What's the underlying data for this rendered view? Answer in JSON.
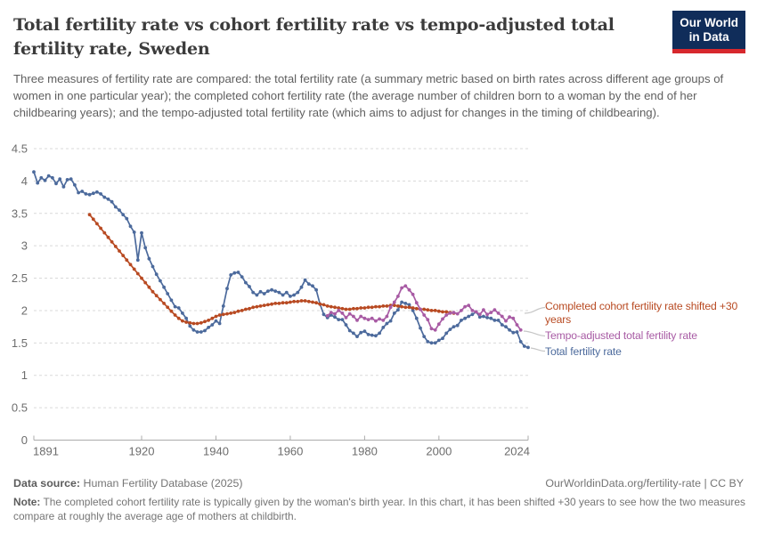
{
  "logo": {
    "line1": "Our World",
    "line2": "in Data"
  },
  "header": {
    "title_line1": "Total fertility rate vs cohort fertility rate vs tempo-adjusted total",
    "title_line2": "fertility rate, Sweden",
    "subtitle": "Three measures of fertility rate are compared: the total fertility rate (a summary metric based on birth rates across different age groups of women in one particular year); the completed cohort fertility rate (the average number of children born to a woman by the end of her childbearing years); and the tempo-adjusted total fertility rate (which aims to adjust for changes in the timing of childbearing)."
  },
  "chart_data": {
    "type": "line",
    "title": "Total fertility rate vs cohort fertility rate vs tempo-adjusted total fertility rate, Sweden",
    "xlabel": "",
    "ylabel": "",
    "xlim": [
      1891,
      2024
    ],
    "ylim": [
      0,
      4.5
    ],
    "x_ticks": [
      1891,
      1920,
      1940,
      1960,
      1980,
      2000,
      2024
    ],
    "y_ticks": [
      0,
      0.5,
      1,
      1.5,
      2,
      2.5,
      3,
      3.5,
      4,
      4.5
    ],
    "grid": "horizontal-dashed",
    "legend_position": "right-annotations",
    "series": [
      {
        "name": "Total fertility rate",
        "color": "#4c6a9c",
        "start_year": 1891,
        "values": [
          4.14,
          3.97,
          4.05,
          4.01,
          4.08,
          4.05,
          3.96,
          4.03,
          3.91,
          4.02,
          4.03,
          3.94,
          3.82,
          3.84,
          3.8,
          3.79,
          3.81,
          3.83,
          3.8,
          3.75,
          3.72,
          3.68,
          3.6,
          3.55,
          3.48,
          3.42,
          3.3,
          3.21,
          2.78,
          3.2,
          2.97,
          2.8,
          2.68,
          2.56,
          2.46,
          2.36,
          2.26,
          2.16,
          2.06,
          2.04,
          1.96,
          1.88,
          1.76,
          1.7,
          1.67,
          1.67,
          1.69,
          1.74,
          1.78,
          1.84,
          1.8,
          2.07,
          2.34,
          2.55,
          2.58,
          2.59,
          2.52,
          2.43,
          2.37,
          2.28,
          2.24,
          2.29,
          2.26,
          2.3,
          2.32,
          2.3,
          2.28,
          2.24,
          2.28,
          2.22,
          2.24,
          2.28,
          2.36,
          2.47,
          2.41,
          2.38,
          2.32,
          2.1,
          1.94,
          1.89,
          1.93,
          1.9,
          1.86,
          1.86,
          1.78,
          1.69,
          1.65,
          1.6,
          1.66,
          1.68,
          1.63,
          1.62,
          1.61,
          1.65,
          1.74,
          1.8,
          1.84,
          1.96,
          2.01,
          2.13,
          2.11,
          2.09,
          2.0,
          1.88,
          1.73,
          1.6,
          1.52,
          1.5,
          1.5,
          1.54,
          1.57,
          1.65,
          1.71,
          1.75,
          1.77,
          1.85,
          1.88,
          1.91,
          1.94,
          1.98,
          1.9,
          1.91,
          1.89,
          1.88,
          1.85,
          1.85,
          1.78,
          1.75,
          1.7,
          1.66,
          1.67,
          1.52,
          1.45,
          1.43
        ]
      },
      {
        "name": "Completed cohort fertility rate shifted +30 years",
        "color": "#b84a22",
        "start_year": 1906,
        "values": [
          3.48,
          3.41,
          3.34,
          3.27,
          3.2,
          3.13,
          3.06,
          2.99,
          2.92,
          2.85,
          2.78,
          2.71,
          2.64,
          2.57,
          2.5,
          2.43,
          2.36,
          2.29,
          2.23,
          2.17,
          2.11,
          2.05,
          1.99,
          1.93,
          1.88,
          1.84,
          1.82,
          1.81,
          1.8,
          1.8,
          1.81,
          1.83,
          1.85,
          1.88,
          1.91,
          1.93,
          1.94,
          1.95,
          1.96,
          1.97,
          1.99,
          2.0,
          2.02,
          2.03,
          2.05,
          2.06,
          2.07,
          2.08,
          2.09,
          2.1,
          2.11,
          2.11,
          2.12,
          2.12,
          2.13,
          2.14,
          2.14,
          2.15,
          2.15,
          2.14,
          2.13,
          2.12,
          2.1,
          2.09,
          2.07,
          2.06,
          2.05,
          2.04,
          2.03,
          2.02,
          2.02,
          2.03,
          2.03,
          2.04,
          2.04,
          2.05,
          2.05,
          2.06,
          2.06,
          2.07,
          2.07,
          2.08,
          2.08,
          2.07,
          2.06,
          2.05,
          2.05,
          2.04,
          2.03,
          2.02,
          2.02,
          2.01,
          2.0,
          2.0,
          1.99,
          1.98,
          1.98,
          1.97,
          1.96
        ]
      },
      {
        "name": "Tempo-adjusted total fertility rate",
        "color": "#a85ba4",
        "start_year": 1970,
        "values": [
          1.92,
          1.97,
          1.95,
          2.0,
          1.96,
          1.89,
          1.95,
          1.91,
          1.85,
          1.91,
          1.88,
          1.86,
          1.88,
          1.84,
          1.87,
          1.85,
          1.91,
          2.05,
          2.13,
          2.22,
          2.35,
          2.38,
          2.32,
          2.25,
          2.12,
          2.02,
          1.93,
          1.86,
          1.72,
          1.7,
          1.79,
          1.87,
          1.93,
          1.96,
          1.97,
          1.95,
          2.0,
          2.06,
          2.08,
          2.0,
          1.98,
          1.94,
          2.01,
          1.94,
          1.97,
          2.01,
          1.96,
          1.91,
          1.84,
          1.9,
          1.88,
          1.78,
          1.7
        ]
      }
    ]
  },
  "footer": {
    "source_label": "Data source:",
    "source_value": " Human Fertility Database (2025)",
    "right_text": "OurWorldinData.org/fertility-rate | CC BY",
    "note_label": "Note:",
    "note_value": " The completed cohort fertility rate is typically given by the woman's birth year. In this chart, it has been shifted +30 years to see how the two measures compare at roughly the average age of mothers at childbirth."
  }
}
